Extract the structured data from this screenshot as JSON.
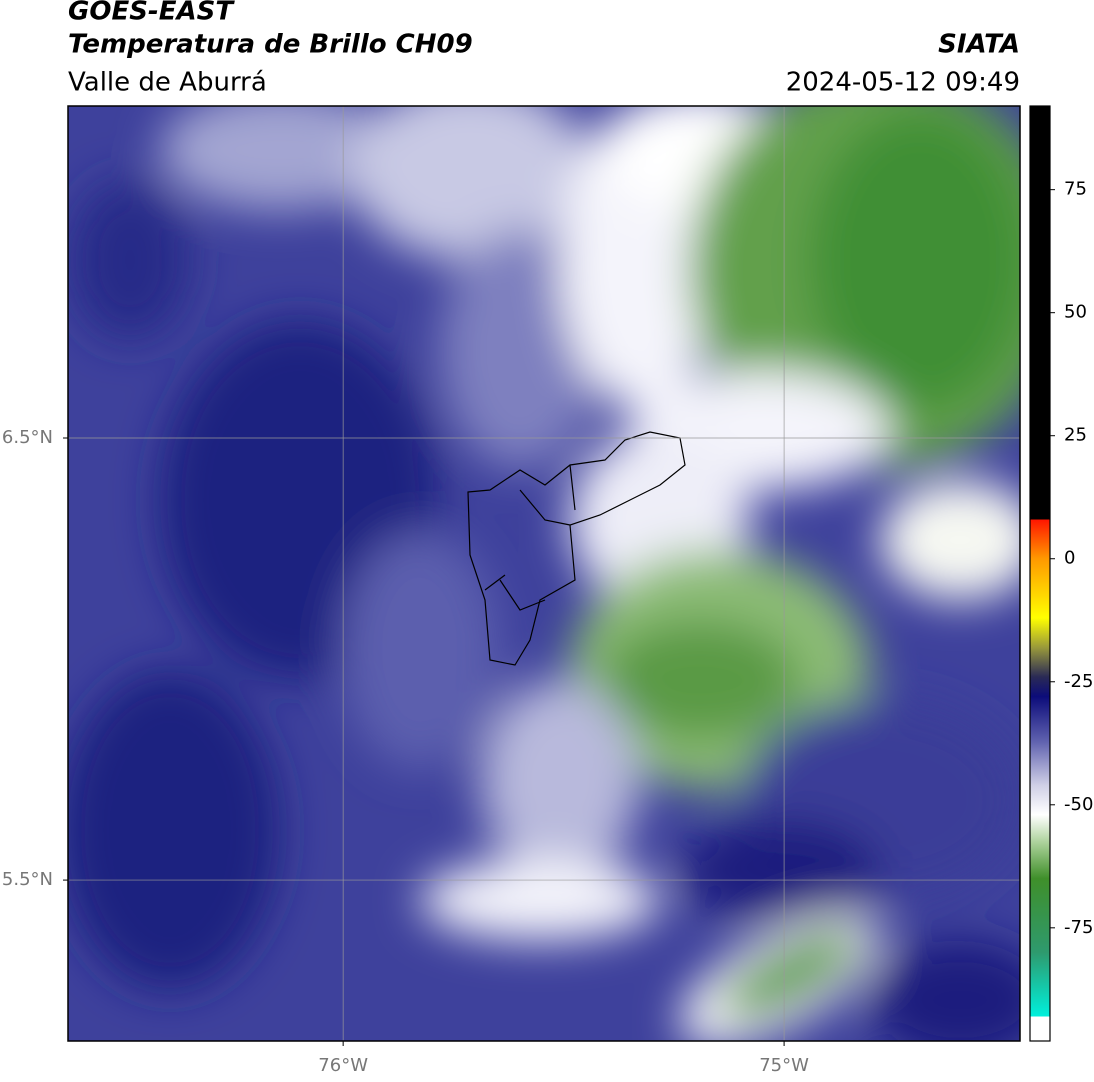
{
  "header": {
    "title": "GOES-EAST",
    "subtitle": "Temperatura de Brillo CH09",
    "region": "Valle de Aburrá",
    "source": "SIATA",
    "datetime": "2024-05-12 09:49"
  },
  "map": {
    "xlim": [
      -76.624,
      -74.465
    ],
    "ylim": [
      5.136,
      7.251
    ],
    "xticks": [
      {
        "value": -76,
        "label": "76°W"
      },
      {
        "value": -75,
        "label": "75°W"
      }
    ],
    "yticks": [
      {
        "value": 6.5,
        "label": "6.5°N"
      },
      {
        "value": 5.5,
        "label": "5.5°N"
      }
    ],
    "grid": true
  },
  "colorbar": {
    "lim": [
      -98,
      92
    ],
    "ticks": [
      75,
      50,
      25,
      0,
      -25,
      -50,
      -75
    ],
    "stops": [
      {
        "value": -98,
        "color": "#ffffff"
      },
      {
        "value": -93,
        "color": "#ffffff"
      },
      {
        "value": -93,
        "color": "#00f0dc"
      },
      {
        "value": -80,
        "color": "#2e9a6e"
      },
      {
        "value": -65,
        "color": "#3f8f2a"
      },
      {
        "value": -58,
        "color": "#a7cf95"
      },
      {
        "value": -52,
        "color": "#ffffff"
      },
      {
        "value": -46,
        "color": "#cfcfe6"
      },
      {
        "value": -37,
        "color": "#5e60ae"
      },
      {
        "value": -28,
        "color": "#0c0c7a"
      },
      {
        "value": -24,
        "color": "#2a2a55"
      },
      {
        "value": -18,
        "color": "#9a9a3a"
      },
      {
        "value": -12,
        "color": "#ffff00"
      },
      {
        "value": 0,
        "color": "#ff9900"
      },
      {
        "value": 8,
        "color": "#ff1500"
      },
      {
        "value": 8,
        "color": "#000000"
      },
      {
        "value": 92,
        "color": "#000000"
      }
    ]
  }
}
